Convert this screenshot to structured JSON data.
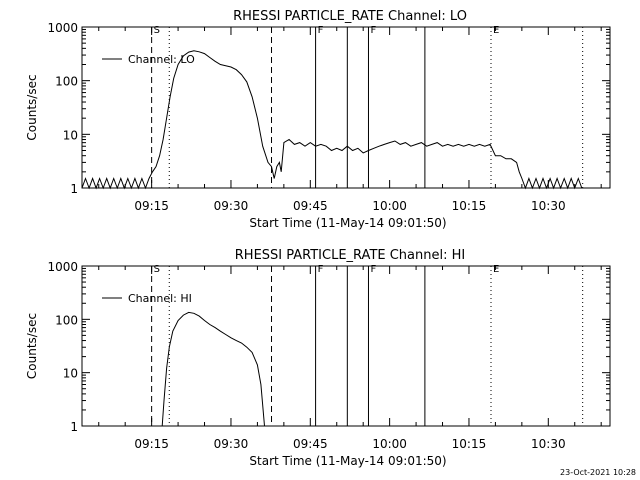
{
  "chart_data": [
    {
      "type": "line",
      "title": "RHESSI PARTICLE_RATE Channel: LO",
      "xlabel": "Start Time (11-May-14 09:01:50)",
      "ylabel": "Counts/sec",
      "y_scale": "log",
      "ylim": [
        1,
        1000
      ],
      "xlim": [
        "09:01:50",
        "10:41:40"
      ],
      "xticks": [
        "09:15",
        "09:30",
        "09:45",
        "10:00",
        "10:15",
        "10:30"
      ],
      "yticks": [
        "1",
        "10",
        "100",
        "1000"
      ],
      "legend": {
        "label": "Channel: LO",
        "placement": "top-left"
      },
      "markers": [
        {
          "time": "09:15:00",
          "style": "dashed",
          "label": "S"
        },
        {
          "time": "09:18:20",
          "style": "dotted",
          "label": ""
        },
        {
          "time": "09:37:40",
          "style": "dashed",
          "label": ""
        },
        {
          "time": "09:46:00",
          "style": "solid",
          "label": "F"
        },
        {
          "time": "09:52:00",
          "style": "solid",
          "label": ""
        },
        {
          "time": "09:56:00",
          "style": "solid",
          "label": "F"
        },
        {
          "time": "10:06:40",
          "style": "solid",
          "label": ""
        },
        {
          "time": "10:19:10",
          "style": "dotted",
          "label": "E"
        },
        {
          "time": "10:36:30",
          "style": "dotted",
          "label": ""
        }
      ],
      "series": [
        {
          "name": "Channel: LO",
          "points": [
            [
              "09:01:50",
              1
            ],
            [
              "09:02:30",
              1.5
            ],
            [
              "09:03:10",
              1
            ],
            [
              "09:03:50",
              1.5
            ],
            [
              "09:04:30",
              1
            ],
            [
              "09:05:10",
              1.5
            ],
            [
              "09:05:50",
              1
            ],
            [
              "09:06:30",
              1.5
            ],
            [
              "09:07:10",
              1
            ],
            [
              "09:07:50",
              1.5
            ],
            [
              "09:08:30",
              1
            ],
            [
              "09:09:10",
              1.5
            ],
            [
              "09:09:50",
              1
            ],
            [
              "09:10:30",
              1.5
            ],
            [
              "09:11:10",
              1
            ],
            [
              "09:11:50",
              1.5
            ],
            [
              "09:12:30",
              1
            ],
            [
              "09:13:10",
              1.5
            ],
            [
              "09:13:50",
              1
            ],
            [
              "09:14:30",
              1.5
            ],
            [
              "09:15:10",
              2
            ],
            [
              "09:15:50",
              2.5
            ],
            [
              "09:16:30",
              4
            ],
            [
              "09:17:10",
              8
            ],
            [
              "09:17:50",
              20
            ],
            [
              "09:18:30",
              50
            ],
            [
              "09:19:10",
              110
            ],
            [
              "09:20:00",
              200
            ],
            [
              "09:21:00",
              290
            ],
            [
              "09:22:00",
              340
            ],
            [
              "09:23:00",
              360
            ],
            [
              "09:24:00",
              345
            ],
            [
              "09:25:00",
              320
            ],
            [
              "09:26:00",
              270
            ],
            [
              "09:27:00",
              230
            ],
            [
              "09:28:00",
              200
            ],
            [
              "09:29:00",
              190
            ],
            [
              "09:30:00",
              180
            ],
            [
              "09:31:00",
              160
            ],
            [
              "09:32:00",
              130
            ],
            [
              "09:33:00",
              95
            ],
            [
              "09:34:00",
              50
            ],
            [
              "09:35:00",
              20
            ],
            [
              "09:36:00",
              6
            ],
            [
              "09:37:00",
              3
            ],
            [
              "09:37:40",
              2.5
            ],
            [
              "09:38:10",
              1.5
            ],
            [
              "09:38:40",
              2.5
            ],
            [
              "09:39:10",
              3
            ],
            [
              "09:39:30",
              2
            ],
            [
              "09:40:00",
              7
            ],
            [
              "09:41:00",
              8
            ],
            [
              "09:42:00",
              6.5
            ],
            [
              "09:43:00",
              7
            ],
            [
              "09:44:00",
              6
            ],
            [
              "09:45:00",
              7
            ],
            [
              "09:46:00",
              6
            ],
            [
              "09:47:00",
              6.5
            ],
            [
              "09:48:00",
              6
            ],
            [
              "09:49:00",
              5
            ],
            [
              "09:50:00",
              5.5
            ],
            [
              "09:51:00",
              5
            ],
            [
              "09:52:00",
              6
            ],
            [
              "09:53:00",
              5
            ],
            [
              "09:54:00",
              5.5
            ],
            [
              "09:55:00",
              4.5
            ],
            [
              "09:56:00",
              5
            ],
            [
              "09:57:00",
              5.5
            ],
            [
              "09:58:00",
              6
            ],
            [
              "09:59:00",
              6.5
            ],
            [
              "10:00:00",
              7
            ],
            [
              "10:01:00",
              7.5
            ],
            [
              "10:02:00",
              6.5
            ],
            [
              "10:03:00",
              7
            ],
            [
              "10:04:00",
              6
            ],
            [
              "10:05:00",
              6.5
            ],
            [
              "10:06:00",
              7
            ],
            [
              "10:07:00",
              6
            ],
            [
              "10:08:00",
              6.5
            ],
            [
              "10:09:00",
              7
            ],
            [
              "10:10:00",
              6
            ],
            [
              "10:11:00",
              6.5
            ],
            [
              "10:12:00",
              6
            ],
            [
              "10:13:00",
              6.5
            ],
            [
              "10:14:00",
              6
            ],
            [
              "10:15:00",
              6.5
            ],
            [
              "10:16:00",
              6
            ],
            [
              "10:17:00",
              6.5
            ],
            [
              "10:18:00",
              6
            ],
            [
              "10:19:00",
              6.5
            ],
            [
              "10:20:00",
              4
            ],
            [
              "10:21:00",
              4
            ],
            [
              "10:22:00",
              3.5
            ],
            [
              "10:23:00",
              3.5
            ],
            [
              "10:24:00",
              3
            ],
            [
              "10:24:30",
              2
            ],
            [
              "10:25:00",
              1.5
            ],
            [
              "10:25:40",
              1
            ],
            [
              "10:26:20",
              1.5
            ],
            [
              "10:27:00",
              1
            ],
            [
              "10:27:40",
              1.5
            ],
            [
              "10:28:20",
              1
            ],
            [
              "10:29:00",
              1.5
            ],
            [
              "10:29:40",
              1
            ],
            [
              "10:30:20",
              1.5
            ],
            [
              "10:31:00",
              1
            ],
            [
              "10:31:40",
              1.5
            ],
            [
              "10:32:20",
              1
            ],
            [
              "10:33:00",
              1.5
            ],
            [
              "10:33:40",
              1
            ],
            [
              "10:34:20",
              1.5
            ],
            [
              "10:35:00",
              1
            ],
            [
              "10:35:40",
              1.5
            ],
            [
              "10:36:20",
              1
            ]
          ]
        }
      ]
    },
    {
      "type": "line",
      "title": "RHESSI PARTICLE_RATE Channel: HI",
      "xlabel": "Start Time (11-May-14 09:01:50)",
      "ylabel": "Counts/sec",
      "y_scale": "log",
      "ylim": [
        1,
        1000
      ],
      "xlim": [
        "09:01:50",
        "10:41:40"
      ],
      "xticks": [
        "09:15",
        "09:30",
        "09:45",
        "10:00",
        "10:15",
        "10:30"
      ],
      "yticks": [
        "1",
        "10",
        "100",
        "1000"
      ],
      "legend": {
        "label": "Channel: HI",
        "placement": "top-left"
      },
      "markers": [
        {
          "time": "09:15:00",
          "style": "dashed",
          "label": "S"
        },
        {
          "time": "09:18:20",
          "style": "dotted",
          "label": ""
        },
        {
          "time": "09:37:40",
          "style": "dashed",
          "label": ""
        },
        {
          "time": "09:46:00",
          "style": "solid",
          "label": "F"
        },
        {
          "time": "09:52:00",
          "style": "solid",
          "label": ""
        },
        {
          "time": "09:56:00",
          "style": "solid",
          "label": "F"
        },
        {
          "time": "10:06:40",
          "style": "solid",
          "label": ""
        },
        {
          "time": "10:19:10",
          "style": "dotted",
          "label": "E"
        },
        {
          "time": "10:36:30",
          "style": "dotted",
          "label": ""
        }
      ],
      "series": [
        {
          "name": "Channel: HI",
          "points": [
            [
              "09:17:00",
              1
            ],
            [
              "09:17:20",
              3
            ],
            [
              "09:17:50",
              12
            ],
            [
              "09:18:20",
              30
            ],
            [
              "09:19:00",
              60
            ],
            [
              "09:20:00",
              95
            ],
            [
              "09:21:00",
              120
            ],
            [
              "09:22:00",
              135
            ],
            [
              "09:23:00",
              130
            ],
            [
              "09:24:00",
              115
            ],
            [
              "09:25:00",
              95
            ],
            [
              "09:26:00",
              80
            ],
            [
              "09:27:00",
              70
            ],
            [
              "09:28:00",
              60
            ],
            [
              "09:29:00",
              52
            ],
            [
              "09:30:00",
              45
            ],
            [
              "09:31:00",
              40
            ],
            [
              "09:32:00",
              36
            ],
            [
              "09:33:00",
              30
            ],
            [
              "09:34:00",
              24
            ],
            [
              "09:35:00",
              14
            ],
            [
              "09:35:40",
              6
            ],
            [
              "09:36:20",
              1
            ]
          ]
        }
      ]
    }
  ],
  "footer": {
    "timestamp": "23-Oct-2021 10:28"
  }
}
